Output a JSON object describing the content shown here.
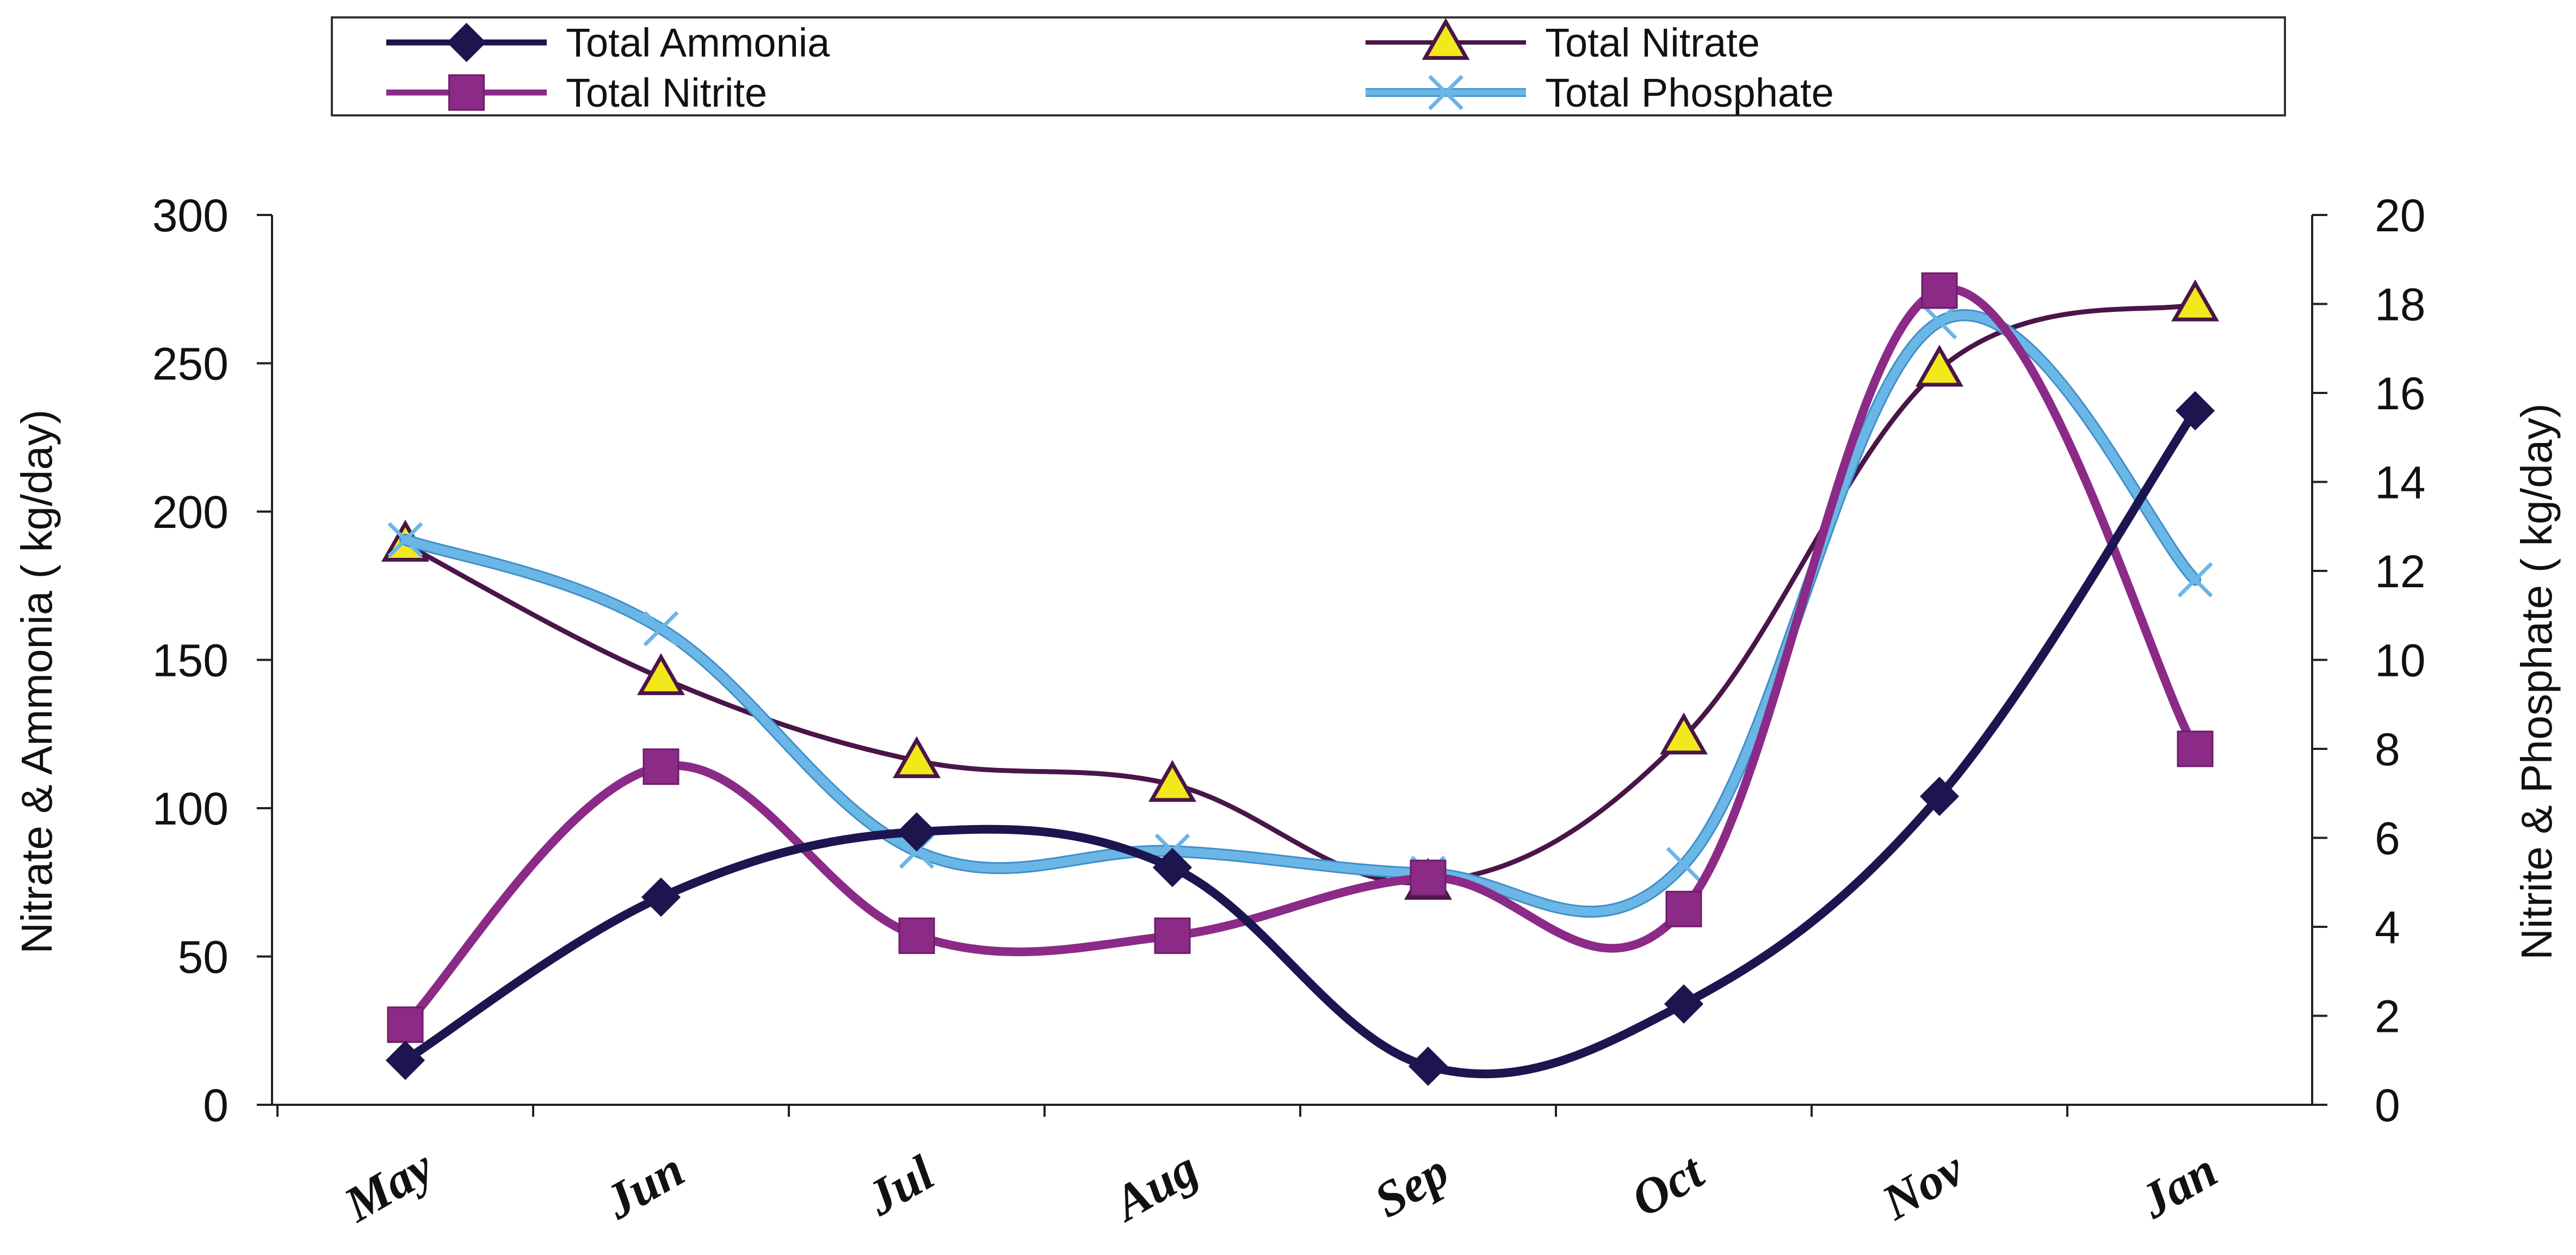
{
  "chart_data": {
    "type": "line",
    "categories": [
      "May",
      "Jun",
      "Jul",
      "Aug",
      "Sep",
      "Oct",
      "Nov",
      "Jan"
    ],
    "ylabel": "Nitrate & Ammonia ( kg/day)",
    "y2label": "Nitrite & Phosphate ( kg/day)",
    "ylim": [
      0,
      300
    ],
    "y2lim": [
      0,
      20
    ],
    "yticks": [
      0,
      50,
      100,
      150,
      200,
      250,
      300
    ],
    "y2ticks": [
      0,
      2,
      4,
      6,
      8,
      10,
      12,
      14,
      16,
      18,
      20
    ],
    "grid": false,
    "legend_position": "top",
    "smooth": true,
    "series": [
      {
        "name": "Total Ammonia",
        "axis": "left",
        "marker": "diamond",
        "color": "#1c1550",
        "values": [
          15,
          70,
          92,
          80,
          13,
          34,
          104,
          234
        ]
      },
      {
        "name": "Total Nitrate",
        "axis": "left",
        "marker": "triangle",
        "color": "#4a1548",
        "marker_fill": "#f2e81a",
        "values": [
          189,
          144,
          116,
          108,
          75,
          124,
          248,
          270
        ]
      },
      {
        "name": "Total Nitrite",
        "axis": "right",
        "marker": "square",
        "color": "#8c2a87",
        "values": [
          1.8,
          7.6,
          3.8,
          3.8,
          5.1,
          4.4,
          18.3,
          8.0
        ]
      },
      {
        "name": "Total Phosphate",
        "axis": "right",
        "marker": "x",
        "color": "#6ab6e6",
        "values": [
          12.7,
          10.7,
          5.7,
          5.7,
          5.2,
          5.4,
          17.6,
          11.8
        ]
      }
    ]
  }
}
